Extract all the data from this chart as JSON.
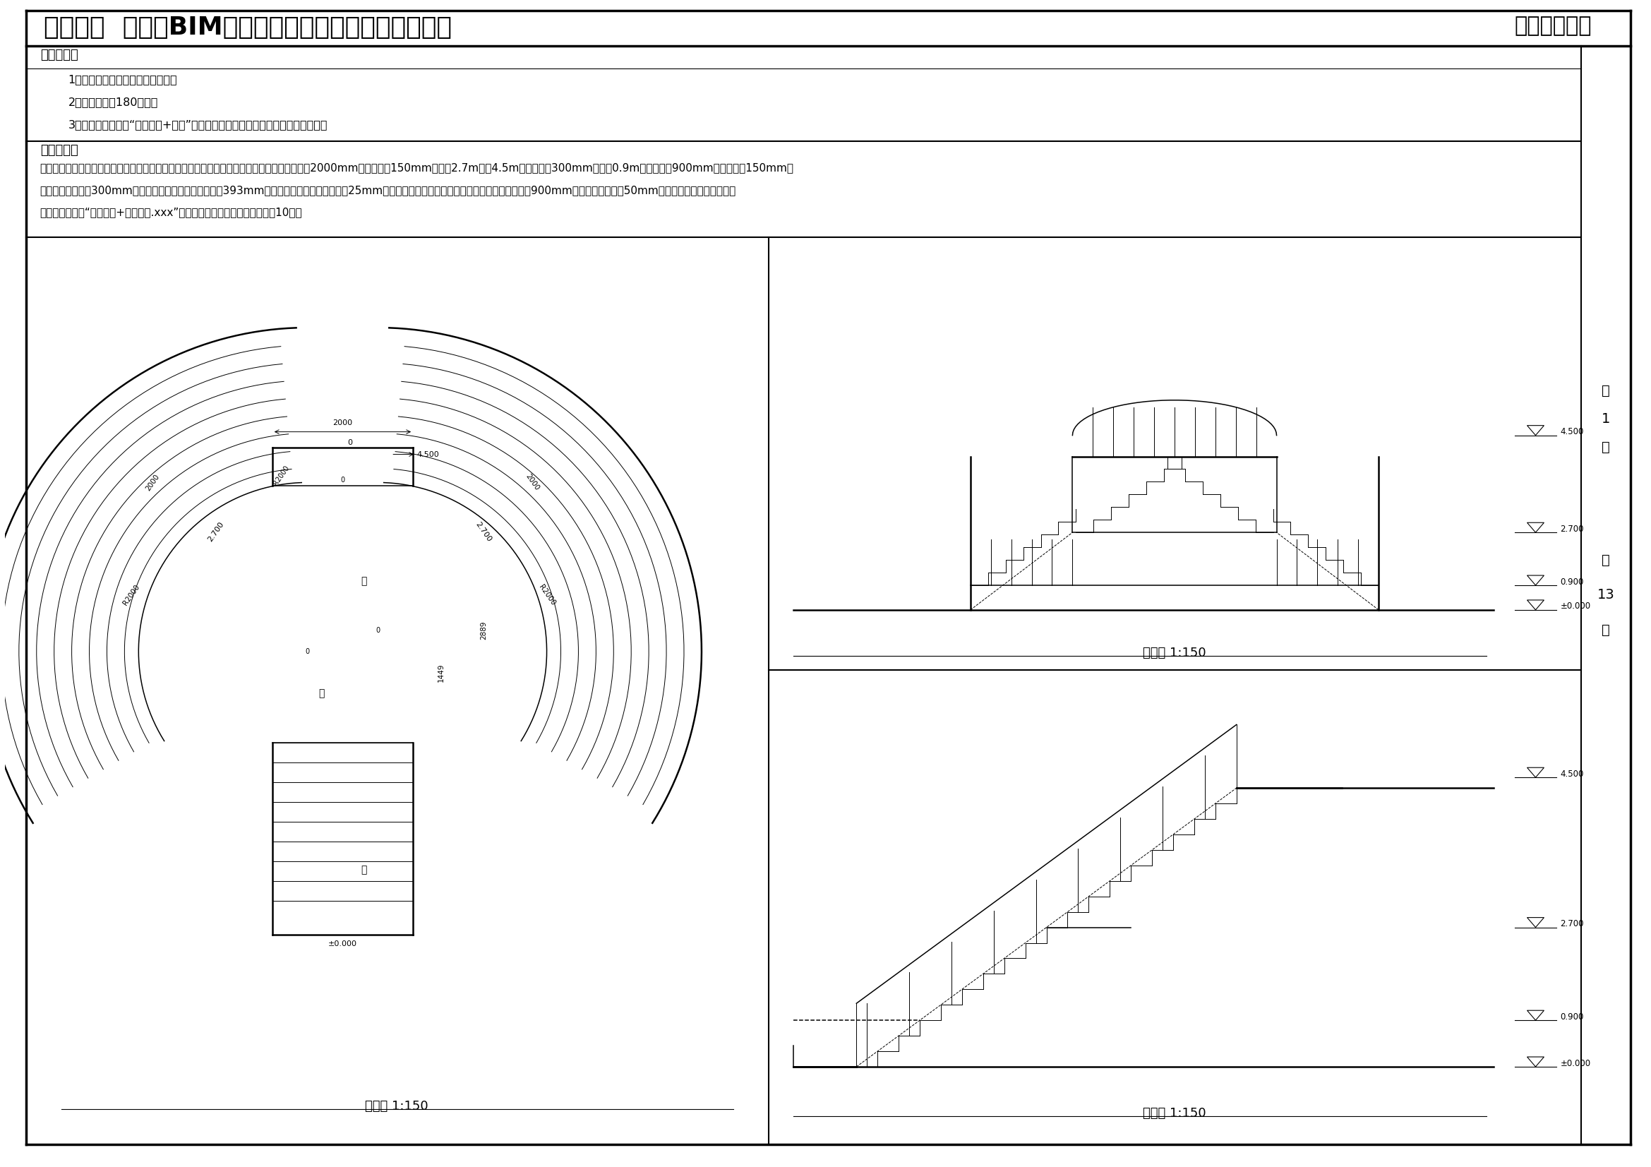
{
  "title_part1": "第十七期  「全国BIM技能等级考试」二级（建筑）试题",
  "title_right": "中国图学学会",
  "exam_req_title": "考试要求：",
  "exam_req_1": "1、考试方式：计算机操作，闭卷；",
  "exam_req_2": "2、考试时间：180分钟；",
  "exam_req_3": "3、新建文件夹，以“准考证号+姓名”命名，用于存放本次考试中生成的全部文件。",
  "prob_title": "试题部分：",
  "prob_line1": "一、根据下图给定尺寸建立整体浇筑樇梯与扶手模型，梯段及平台材质为钉筋混凝土，梯段宽度2000mm，结构深度150mm，标高2.7m处及4.5m处平台厚度300mm，标高0.9m处平台厚度900mm，踏面高度150mm，",
  "prob_line2": "直跑梯段踏板深度300mm，弧形梯段踏板（中心线）深度393mm，踏板、踢面的面层厚度均为25mm，材质为石材；扶手及栏杆材质为不锈錢，扶手高度900mm，扶手截面为直径50mm的圆形，栏杆样式及间距自",
  "prob_line3": "定。请将模型以“景观樇梯+考生姓名.xxx”为文件名保存到考生文件夹中。（10分）",
  "plan_label": "平面图 1:150",
  "front_label": "主视图 1:150",
  "side_label": "右视图 1:150",
  "page_texts": [
    "第",
    "1",
    "页",
    " ",
    "共",
    "13",
    "页"
  ],
  "bg_color": "#ffffff"
}
